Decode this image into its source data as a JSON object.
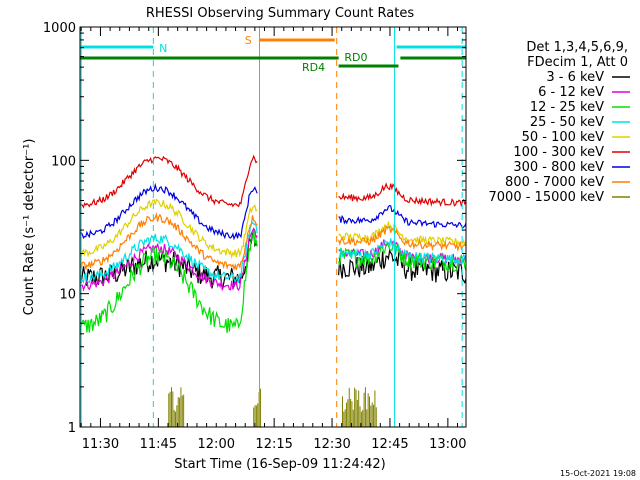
{
  "chart_data": {
    "type": "line",
    "title": "RHESSI Observing Summary Count Rates",
    "xlabel": "Start Time (16-Sep-09 11:24:42)",
    "ylabel": "Count Rate (s⁻¹ detector⁻¹)",
    "yscale": "log",
    "ylim": [
      1,
      1000
    ],
    "xlim_minutes": [
      0,
      100
    ],
    "x_start_time": "11:24:42",
    "xticks": [
      {
        "m": 5.3,
        "label": "11:30"
      },
      {
        "m": 20.3,
        "label": "11:45"
      },
      {
        "m": 35.3,
        "label": "12:00"
      },
      {
        "m": 50.3,
        "label": "12:15"
      },
      {
        "m": 65.3,
        "label": "12:30"
      },
      {
        "m": 80.3,
        "label": "12:45"
      },
      {
        "m": 95.3,
        "label": "13:00"
      }
    ],
    "yticks": [
      {
        "v": 1,
        "label": "1"
      },
      {
        "v": 10,
        "label": "10"
      },
      {
        "v": 100,
        "label": "100"
      },
      {
        "v": 1000,
        "label": "1000"
      }
    ],
    "legend_header": [
      "Det 1,3,4,5,6,9,",
      "FDecim 1, Att 0"
    ],
    "legend_position": "right",
    "segments": [
      [
        0,
        46
      ],
      [
        67,
        100
      ]
    ],
    "series": [
      {
        "name": "3 - 6 keV",
        "color": "#000000",
        "base": 13,
        "peak": 18,
        "spike": 25,
        "post": 16,
        "noise": 0.09
      },
      {
        "name": "6 - 12 keV",
        "color": "#e000e0",
        "base": 11.5,
        "peak": 22,
        "spike": 30,
        "post": 20,
        "noise": 0.04
      },
      {
        "name": "12 - 25 keV",
        "color": "#00e000",
        "base": 5.5,
        "peak": 19,
        "spike": 26,
        "post": 19,
        "noise": 0.07
      },
      {
        "name": "25 - 50 keV",
        "color": "#00e0e0",
        "base": 13,
        "peak": 26,
        "spike": 34,
        "post": 20,
        "noise": 0.04
      },
      {
        "name": "50 - 100 keV",
        "color": "#e0d000",
        "base": 20,
        "peak": 48,
        "spike": 45,
        "post": 27,
        "noise": 0.03
      },
      {
        "name": "100 - 300 keV",
        "color": "#e00000",
        "base": 46,
        "peak": 103,
        "spike": 105,
        "post": 53,
        "noise": 0.025
      },
      {
        "name": "300 - 800 keV",
        "color": "#0000e0",
        "base": 27,
        "peak": 62,
        "spike": 62,
        "post": 36,
        "noise": 0.025
      },
      {
        "name": "800 - 7000 keV",
        "color": "#ff7f00",
        "base": 16,
        "peak": 37,
        "spike": 37,
        "post": 25,
        "noise": 0.03
      },
      {
        "name": "7000 - 15000 keV",
        "color": "#808000",
        "base": 1,
        "peak": 1,
        "spike": 1,
        "post": 1,
        "noise": 0
      }
    ],
    "annotations": [
      {
        "text": "N",
        "color": "#00e0e0"
      },
      {
        "text": "S",
        "color": "#ff7f00"
      },
      {
        "text": "RD0",
        "color": "#008000"
      },
      {
        "text": "RD4",
        "color": "#008000"
      }
    ],
    "footer_date": "15-Oct-2021 19:08"
  }
}
